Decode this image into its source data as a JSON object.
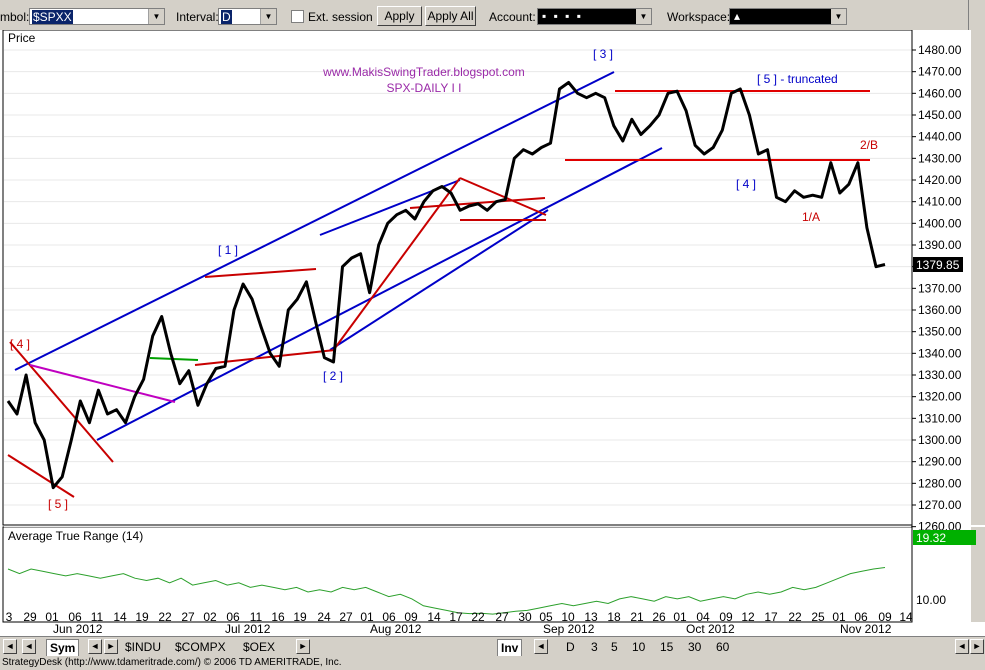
{
  "toolbar": {
    "symbol_label": "mbol:",
    "symbol_value": "$SPXX",
    "interval_label": "Interval:",
    "interval_value": "D",
    "ext_session_label": "Ext. session",
    "apply_label": "Apply",
    "apply_all_label": "Apply All",
    "account_label": "Account:",
    "account_value": "▪ ▪ ▪ ▪",
    "workspace_label": "Workspace:",
    "workspace_value": "▴"
  },
  "price_pane": {
    "title": "Price",
    "watermark_line1": "www.MakisSwingTrader.blogspot.com",
    "watermark_line2": "SPX-DAILY I I",
    "last_price": "1379.85",
    "y_ticks": [
      "1480.00",
      "1470.00",
      "1460.00",
      "1450.00",
      "1440.00",
      "1430.00",
      "1420.00",
      "1410.00",
      "1400.00",
      "1390.00",
      "1380.00",
      "1370.00",
      "1360.00",
      "1350.00",
      "1340.00",
      "1330.00",
      "1320.00",
      "1310.00",
      "1300.00",
      "1290.00",
      "1280.00",
      "1270.00",
      "1260.00"
    ]
  },
  "atr_pane": {
    "title": "Average True Range (14)",
    "last_value": "19.32",
    "tick": "10.00"
  },
  "x_axis": {
    "day_labels": [
      "3",
      "29",
      "01",
      "06",
      "11",
      "14",
      "19",
      "22",
      "27",
      "02",
      "06",
      "11",
      "16",
      "19",
      "24",
      "27",
      "01",
      "06",
      "09",
      "14",
      "17",
      "22",
      "27",
      "30",
      "05",
      "10",
      "13",
      "18",
      "21",
      "26",
      "01",
      "04",
      "09",
      "12",
      "17",
      "22",
      "25",
      "01",
      "06",
      "09",
      "14"
    ],
    "month_labels": [
      "Jun 2012",
      "Jul 2012",
      "Aug 2012",
      "Sep 2012",
      "Oct 2012",
      "Nov 2012"
    ]
  },
  "bottom_tabs": {
    "sym": "Sym",
    "indu": "$INDU",
    "compx": "$COMPX",
    "oex": "$OEX",
    "inv": "Inv",
    "d": "D",
    "t3": "3",
    "t5": "5",
    "t10": "10",
    "t15": "15",
    "t30": "30",
    "t60": "60"
  },
  "status_text": "StrategyDesk (http://www.tdameritrade.com/) © 2006 TD AMERITRADE, Inc.",
  "annotations": {
    "w4_left": "[ 4 ]",
    "w5_bottom": "[ 5 ]",
    "w1": "[ 1 ]",
    "w2": "[ 2 ]",
    "w3": "[ 3 ]",
    "w4_right": "[ 4 ]",
    "w5_trunc": "[  5  ] - truncated",
    "one_a": "1/A",
    "two_b": "2/B"
  },
  "chart_data": {
    "type": "line",
    "series": [
      {
        "values": [
          1318,
          1312,
          1330,
          1308,
          1300,
          1278,
          1283,
          1300,
          1318,
          1308,
          1323,
          1312,
          1314,
          1308,
          1320,
          1328,
          1348,
          1357,
          1340,
          1326,
          1332,
          1316,
          1326,
          1333,
          1334,
          1360,
          1372,
          1365,
          1352,
          1340,
          1334,
          1360,
          1365,
          1373,
          1355,
          1338,
          1336,
          1380,
          1384,
          1386,
          1368,
          1390,
          1400,
          1404,
          1406,
          1402,
          1410,
          1415,
          1417,
          1414,
          1406,
          1408,
          1409,
          1406,
          1410,
          1411,
          1430,
          1434,
          1432,
          1435,
          1437,
          1462,
          1465,
          1460,
          1458,
          1460,
          1458,
          1445,
          1438,
          1448,
          1441,
          1445,
          1450,
          1460,
          1461,
          1452,
          1436,
          1432,
          1435,
          1443,
          1460,
          1462,
          1450,
          1432,
          1434,
          1412,
          1410,
          1415,
          1412,
          1413,
          1412,
          1428,
          1414,
          1418,
          1428,
          1398,
          1380,
          1381
        ]
      },
      {
        "name": "Average True Range (14)",
        "values": [
          19,
          18,
          19,
          18.5,
          18,
          17.5,
          18,
          17.5,
          17,
          17.5,
          18,
          17,
          16.5,
          17,
          16,
          17,
          15.5,
          16,
          16.5,
          15.5,
          16,
          15,
          15.5,
          15,
          14.5,
          15,
          14,
          14.5,
          14,
          15,
          14.5,
          15,
          14,
          13,
          13.5,
          12.5,
          11,
          10.5,
          10,
          9.5,
          9.3,
          9.4,
          9.2,
          9.5,
          9.8,
          10,
          10.5,
          11,
          11.5,
          11,
          11.5,
          12,
          11.5,
          12.5,
          13,
          12.5,
          12,
          13,
          12.5,
          13,
          12,
          12.5,
          13,
          12.5,
          13.5,
          14,
          13.5,
          14,
          15,
          14.5,
          15,
          16,
          17,
          18,
          18.5,
          19,
          19.32
        ]
      }
    ],
    "ylabel": "Price",
    "ylim": [
      1255,
      1487
    ]
  }
}
